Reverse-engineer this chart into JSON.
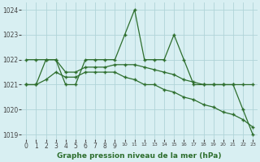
{
  "xlabel": "Graphe pression niveau de la mer (hPa)",
  "xlim": [
    -0.5,
    23.5
  ],
  "ylim": [
    1018.8,
    1024.3
  ],
  "yticks": [
    1019,
    1020,
    1021,
    1022,
    1023,
    1024
  ],
  "xticks": [
    0,
    1,
    2,
    3,
    4,
    5,
    6,
    7,
    8,
    9,
    10,
    11,
    12,
    13,
    14,
    15,
    16,
    17,
    18,
    19,
    20,
    21,
    22,
    23
  ],
  "bg_color": "#d8eff2",
  "grid_color": "#b0d4d8",
  "line_color": "#2d6e2d",
  "line1_x": [
    0,
    1,
    2,
    3,
    4,
    5,
    6,
    7,
    8,
    9,
    10,
    11,
    12,
    13,
    14,
    15,
    16,
    17,
    18,
    19,
    20,
    21,
    22,
    23
  ],
  "line1_y": [
    1021.0,
    1021.0,
    1022.0,
    1022.0,
    1021.0,
    1021.0,
    1022.0,
    1022.0,
    1022.0,
    1022.0,
    1023.0,
    1024.0,
    1022.0,
    1022.0,
    1022.0,
    1023.0,
    1022.0,
    1021.0,
    1021.0,
    1021.0,
    1021.0,
    1021.0,
    1020.0,
    1019.0
  ],
  "line2_x": [
    0,
    1,
    2,
    3,
    4,
    5,
    6,
    7,
    8,
    9,
    10,
    11,
    12,
    13,
    14,
    15,
    16,
    17,
    18,
    19,
    20,
    21,
    22,
    23
  ],
  "line2_y": [
    1022.0,
    1022.0,
    1022.0,
    1022.0,
    1021.5,
    1021.5,
    1021.7,
    1021.7,
    1021.7,
    1021.8,
    1021.8,
    1021.8,
    1021.7,
    1021.6,
    1021.5,
    1021.4,
    1021.2,
    1021.1,
    1021.0,
    1021.0,
    1021.0,
    1021.0,
    1021.0,
    1021.0
  ],
  "line3_x": [
    0,
    1,
    2,
    3,
    4,
    5,
    6,
    7,
    8,
    9,
    10,
    11,
    12,
    13,
    14,
    15,
    16,
    17,
    18,
    19,
    20,
    21,
    22,
    23
  ],
  "line3_y": [
    1021.0,
    1021.0,
    1021.2,
    1021.5,
    1021.3,
    1021.3,
    1021.5,
    1021.5,
    1021.5,
    1021.5,
    1021.3,
    1021.2,
    1021.0,
    1021.0,
    1020.8,
    1020.7,
    1020.5,
    1020.4,
    1020.2,
    1020.1,
    1019.9,
    1019.8,
    1019.6,
    1019.3
  ],
  "linewidth": 0.9,
  "markersize": 3.5,
  "tick_fontsize": 5.5,
  "xlabel_fontsize": 6.5
}
